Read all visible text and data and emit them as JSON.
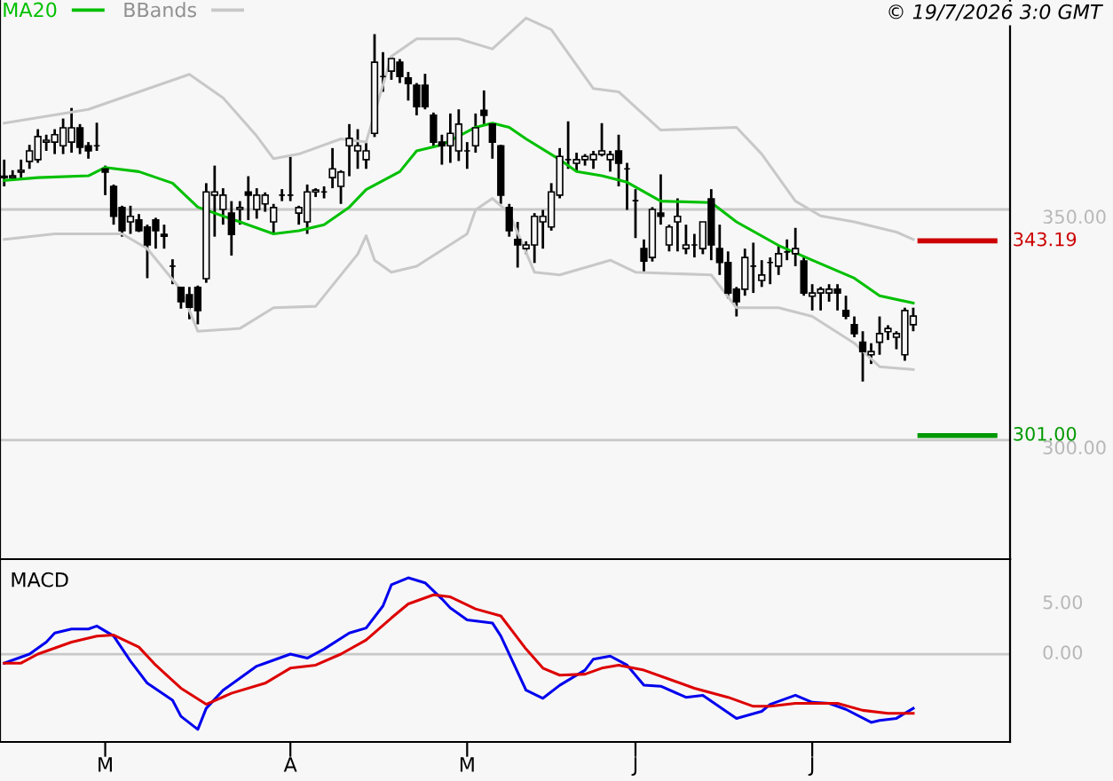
{
  "chart_data": [
    {
      "type": "candlestick",
      "annotations": [
        "© 19/7/2026 3:0 GMT"
      ],
      "color": "#000000",
      "ohlc": [
        [
          357.2,
          360.8,
          355.0,
          356.9
        ],
        [
          356.9,
          358.5,
          356.3,
          357.3
        ],
        [
          358.1,
          360.8,
          356.9,
          358.5
        ],
        [
          360.4,
          364.0,
          358.8,
          362.7
        ],
        [
          360.8,
          367.4,
          360.1,
          365.8
        ],
        [
          364.6,
          366.2,
          362.7,
          365.0
        ],
        [
          364.6,
          367.4,
          362.0,
          366.2
        ],
        [
          363.8,
          369.7,
          362.0,
          367.7
        ],
        [
          364.6,
          372.0,
          362.3,
          367.7
        ],
        [
          367.7,
          368.5,
          362.0,
          363.5
        ],
        [
          363.8,
          364.6,
          361.0,
          362.7
        ],
        [
          363.8,
          368.8,
          362.7,
          363.8
        ],
        [
          358.8,
          359.5,
          353.1,
          358.1
        ],
        [
          355.0,
          355.4,
          346.7,
          348.5
        ],
        [
          350.4,
          350.8,
          344.1,
          345.4
        ],
        [
          347.3,
          350.8,
          344.7,
          348.5
        ],
        [
          347.7,
          349.0,
          345.1,
          345.4
        ],
        [
          346.2,
          346.7,
          335.1,
          342.3
        ],
        [
          347.7,
          348.2,
          341.5,
          345.4
        ],
        [
          344.6,
          346.7,
          341.5,
          344.2
        ],
        [
          337.7,
          339.2,
          333.8,
          337.7
        ],
        [
          333.1,
          333.2,
          328.5,
          330.0
        ],
        [
          331.5,
          333.2,
          326.2,
          328.8
        ],
        [
          333.1,
          333.5,
          325.1,
          328.1
        ],
        [
          335.0,
          355.7,
          334.1,
          353.8
        ],
        [
          353.1,
          359.5,
          344.1,
          353.8
        ],
        [
          350.0,
          354.6,
          346.7,
          353.1
        ],
        [
          349.2,
          351.8,
          340.0,
          344.6
        ],
        [
          350.0,
          351.8,
          346.7,
          350.4
        ],
        [
          353.8,
          357.2,
          347.7,
          353.1
        ],
        [
          350.0,
          354.6,
          348.0,
          353.1
        ],
        [
          351.2,
          353.7,
          349.5,
          353.1
        ],
        [
          347.3,
          351.2,
          344.7,
          350.4
        ],
        [
          353.1,
          354.4,
          351.8,
          353.1
        ],
        [
          353.1,
          361.4,
          351.8,
          353.1
        ],
        [
          349.2,
          350.8,
          346.7,
          350.4
        ],
        [
          347.3,
          355.4,
          344.7,
          353.8
        ],
        [
          353.8,
          354.6,
          352.7,
          354.2
        ],
        [
          353.8,
          355.0,
          352.4,
          353.8
        ],
        [
          356.9,
          363.3,
          354.6,
          358.8
        ],
        [
          355.0,
          358.5,
          351.2,
          358.1
        ],
        [
          363.8,
          368.5,
          357.2,
          365.4
        ],
        [
          362.7,
          367.4,
          358.8,
          363.8
        ],
        [
          360.8,
          364.6,
          358.8,
          362.7
        ],
        [
          366.5,
          388.0,
          365.7,
          381.9
        ],
        [
          378.8,
          384.1,
          375.5,
          378.8
        ],
        [
          380.0,
          383.2,
          378.1,
          382.7
        ],
        [
          381.9,
          382.6,
          377.4,
          378.8
        ],
        [
          378.5,
          379.8,
          373.6,
          377.3
        ],
        [
          376.9,
          377.4,
          370.4,
          372.3
        ],
        [
          376.9,
          379.4,
          371.7,
          372.3
        ],
        [
          370.4,
          371.0,
          363.6,
          364.6
        ],
        [
          364.6,
          366.2,
          359.7,
          363.8
        ],
        [
          363.8,
          370.8,
          360.1,
          366.5
        ],
        [
          362.7,
          371.7,
          360.5,
          368.5
        ],
        [
          362.7,
          364.6,
          358.8,
          362.7
        ],
        [
          363.8,
          370.8,
          362.3,
          367.7
        ],
        [
          371.5,
          375.8,
          368.5,
          370.4
        ],
        [
          368.5,
          368.7,
          361.0,
          364.6
        ],
        [
          363.8,
          364.0,
          351.2,
          353.1
        ],
        [
          350.4,
          351.2,
          344.1,
          345.4
        ],
        [
          343.5,
          347.3,
          337.4,
          342.3
        ],
        [
          341.5,
          343.1,
          340.3,
          342.3
        ],
        [
          342.3,
          349.2,
          338.4,
          348.5
        ],
        [
          347.3,
          349.9,
          341.5,
          348.5
        ],
        [
          346.2,
          355.7,
          345.4,
          353.8
        ],
        [
          353.1,
          363.3,
          352.4,
          361.5
        ],
        [
          360.8,
          369.1,
          358.8,
          360.8
        ],
        [
          360.0,
          362.3,
          358.2,
          360.8
        ],
        [
          360.8,
          362.0,
          359.5,
          361.5
        ],
        [
          360.8,
          362.7,
          358.8,
          361.9
        ],
        [
          361.9,
          368.7,
          361.5,
          362.7
        ],
        [
          360.8,
          362.7,
          358.2,
          361.9
        ],
        [
          362.7,
          366.2,
          355.0,
          360.0
        ],
        [
          358.8,
          360.1,
          349.9,
          358.8
        ],
        [
          351.9,
          354.4,
          343.8,
          351.9
        ],
        [
          341.5,
          343.5,
          336.4,
          338.8
        ],
        [
          339.6,
          350.5,
          338.7,
          350.0
        ],
        [
          349.2,
          357.6,
          346.7,
          348.5
        ],
        [
          342.3,
          346.7,
          340.9,
          346.2
        ],
        [
          347.3,
          352.4,
          340.9,
          348.5
        ],
        [
          341.5,
          346.7,
          340.3,
          342.3
        ],
        [
          342.3,
          344.7,
          339.6,
          342.3
        ],
        [
          341.5,
          347.3,
          340.3,
          347.3
        ],
        [
          352.3,
          354.4,
          339.0,
          342.3
        ],
        [
          341.5,
          346.7,
          335.8,
          338.5
        ],
        [
          338.5,
          340.9,
          330.7,
          331.9
        ],
        [
          332.7,
          333.2,
          326.8,
          330.0
        ],
        [
          332.7,
          341.5,
          331.3,
          339.6
        ],
        [
          337.7,
          342.8,
          331.9,
          337.7
        ],
        [
          334.6,
          339.0,
          333.2,
          335.8
        ],
        [
          338.5,
          339.6,
          333.8,
          338.5
        ],
        [
          337.7,
          342.2,
          335.8,
          340.4
        ],
        [
          340.8,
          343.5,
          339.0,
          340.8
        ],
        [
          340.4,
          346.0,
          337.7,
          341.5
        ],
        [
          338.8,
          339.6,
          331.3,
          331.9
        ],
        [
          331.2,
          333.8,
          328.1,
          331.9
        ],
        [
          331.9,
          333.2,
          328.1,
          332.7
        ],
        [
          331.9,
          333.8,
          330.0,
          332.7
        ],
        [
          332.7,
          333.8,
          328.1,
          331.9
        ],
        [
          328.1,
          331.3,
          326.2,
          326.9
        ],
        [
          325.0,
          326.8,
          322.3,
          323.1
        ],
        [
          321.2,
          323.6,
          312.7,
          319.2
        ],
        [
          318.5,
          321.0,
          316.5,
          319.2
        ],
        [
          321.2,
          326.8,
          318.5,
          323.1
        ],
        [
          323.5,
          324.9,
          321.7,
          324.2
        ],
        [
          322.3,
          323.6,
          319.7,
          323.1
        ],
        [
          318.5,
          328.7,
          317.2,
          328.1
        ],
        [
          325.0,
          328.7,
          323.6,
          326.9
        ],
        null,
        null,
        null,
        null,
        null,
        null,
        null,
        null,
        null,
        null,
        null
      ],
      "series": [
        {
          "name": "MA20",
          "type": "line",
          "color": "#00c000",
          "values": [
            356.3,
            null,
            null,
            null,
            356.9,
            null,
            null,
            null,
            null,
            null,
            357.3,
            null,
            359.1,
            null,
            null,
            null,
            358.2,
            null,
            null,
            null,
            355.7,
            null,
            null,
            350.5,
            null,
            null,
            null,
            null,
            347.3,
            null,
            null,
            null,
            344.7,
            null,
            null,
            345.4,
            null,
            null,
            346.7,
            null,
            null,
            350.5,
            null,
            354.3,
            null,
            null,
            null,
            358.2,
            null,
            362.7,
            null,
            null,
            364.0,
            null,
            365.9,
            null,
            367.8,
            null,
            368.7,
            null,
            367.8,
            null,
            365.3,
            null,
            null,
            null,
            360.8,
            null,
            358.2,
            null,
            null,
            357.3,
            null,
            null,
            355.9,
            null,
            null,
            null,
            351.8,
            null,
            null,
            null,
            null,
            null,
            351.5,
            null,
            null,
            347.3,
            null,
            null,
            null,
            null,
            342.2,
            null,
            null,
            null,
            339.0,
            null,
            null,
            null,
            null,
            335.1,
            null,
            null,
            331.3,
            null,
            null,
            null,
            329.7,
            null,
            null,
            null,
            null,
            null,
            null,
            null,
            null,
            null,
            null,
            null
          ]
        },
        {
          "name": "BBands",
          "type": "line",
          "color": "#c8c8c8",
          "values": [
            368.7,
            null,
            null,
            null,
            null,
            null,
            null,
            null,
            null,
            null,
            371.7,
            null,
            null,
            null,
            null,
            null,
            375.5,
            null,
            null,
            null,
            null,
            null,
            379.3,
            null,
            null,
            null,
            374.2,
            null,
            null,
            null,
            365.9,
            null,
            361.0,
            null,
            null,
            362.0,
            null,
            null,
            null,
            null,
            365.3,
            null,
            null,
            364.6,
            null,
            null,
            383.2,
            null,
            null,
            387.0,
            null,
            null,
            null,
            null,
            387.0,
            null,
            null,
            null,
            384.8,
            null,
            null,
            null,
            391.5,
            null,
            null,
            389.0,
            null,
            null,
            null,
            null,
            376.2,
            null,
            null,
            375.5,
            null,
            null,
            null,
            null,
            367.2,
            null,
            null,
            null,
            null,
            null,
            null,
            null,
            null,
            367.8,
            null,
            null,
            362.0,
            null,
            null,
            null,
            351.8,
            null,
            null,
            348.6,
            null,
            null,
            null,
            347.3,
            null,
            null,
            null,
            null,
            345.1,
            null,
            343.5,
            null,
            null,
            null,
            null,
            null,
            null,
            null,
            null,
            null,
            null,
            null
          ]
        },
        {
          "type": "line",
          "color": "#c8c8c8",
          "values": [
            343.5,
            null,
            null,
            null,
            null,
            null,
            344.7,
            null,
            null,
            null,
            null,
            null,
            null,
            null,
            344.7,
            null,
            null,
            341.5,
            null,
            null,
            null,
            332.6,
            null,
            323.6,
            null,
            null,
            null,
            null,
            324.2,
            null,
            null,
            null,
            328.7,
            null,
            null,
            null,
            null,
            329.0,
            null,
            null,
            null,
            null,
            340.3,
            344.3,
            339.0,
            null,
            336.4,
            null,
            null,
            337.7,
            null,
            null,
            null,
            null,
            null,
            344.7,
            349.9,
            null,
            352.4,
            null,
            349.2,
            null,
            null,
            336.4,
            null,
            null,
            335.8,
            null,
            null,
            null,
            null,
            null,
            339.0,
            null,
            null,
            336.4,
            null,
            null,
            null,
            null,
            null,
            null,
            null,
            null,
            335.8,
            null,
            null,
            328.7,
            null,
            null,
            null,
            null,
            328.7,
            null,
            null,
            null,
            326.8,
            null,
            null,
            null,
            null,
            321.0,
            null,
            null,
            315.9,
            null,
            null,
            null,
            315.3,
            null,
            null,
            null,
            null,
            null,
            null,
            null,
            null,
            null,
            null,
            null
          ]
        }
      ],
      "categories": [
        null,
        null,
        null,
        null,
        null,
        null,
        null,
        null,
        null,
        null,
        null,
        null,
        null,
        null,
        null,
        null,
        null,
        null,
        null,
        null,
        null,
        null,
        null,
        null,
        null,
        null,
        null,
        null,
        null,
        null,
        null,
        null,
        null,
        null,
        null,
        null,
        null,
        null,
        null,
        null,
        null,
        null,
        null,
        null,
        null,
        null,
        null,
        null,
        null,
        null,
        null,
        null,
        null,
        null,
        null,
        null,
        null,
        null,
        null,
        null,
        null,
        null,
        null,
        null,
        null,
        null,
        null,
        null,
        null,
        null,
        null,
        null,
        null,
        null,
        null,
        null,
        null,
        null,
        null,
        null,
        null,
        null,
        null,
        null,
        null,
        null,
        null,
        null,
        null,
        null,
        null,
        null,
        null,
        null,
        null,
        null,
        null,
        null,
        null,
        null,
        null,
        null,
        null,
        null,
        null,
        null,
        null,
        null,
        null,
        null,
        null,
        null,
        null,
        null,
        null,
        null,
        null,
        null,
        null,
        null
      ],
      "ylim": [
        274.2,
        395.4
      ],
      "yticks": [
        {
          "value": 350,
          "label": "350.00"
        },
        {
          "value": 300,
          "label": "300.00"
        }
      ],
      "grid": "y",
      "legend": "top left",
      "tick_labels": "y",
      "ref_lines": [
        {
          "axis": "y",
          "value": 343.19,
          "label": "343.19",
          "color": "#cc0000"
        },
        {
          "axis": "y",
          "value": 301.0,
          "label": "301.00",
          "color": "#009900"
        }
      ]
    },
    {
      "type": "line",
      "title": "MACD",
      "series": [
        {
          "color": "#0000ee",
          "values": [
            -0.9,
            null,
            null,
            0.0,
            null,
            1.2,
            2.1,
            null,
            2.5,
            null,
            2.5,
            2.8,
            null,
            1.8,
            null,
            -0.7,
            null,
            -2.9,
            null,
            null,
            -4.6,
            -6.2,
            null,
            -7.5,
            -5.4,
            null,
            -3.6,
            null,
            null,
            null,
            -1.2,
            -0.9,
            null,
            null,
            0.0,
            null,
            -0.4,
            null,
            0.5,
            null,
            null,
            2.1,
            null,
            2.6,
            null,
            4.8,
            6.9,
            null,
            7.6,
            null,
            7.1,
            null,
            5.5,
            4.6,
            null,
            3.4,
            null,
            null,
            3.1,
            1.8,
            null,
            null,
            -3.6,
            null,
            -4.4,
            null,
            -3.1,
            null,
            null,
            -1.6,
            -0.5,
            null,
            -0.2,
            null,
            -1.1,
            null,
            -3.1,
            null,
            -3.2,
            null,
            null,
            -4.3,
            null,
            -4.1,
            null,
            null,
            null,
            -6.4,
            null,
            null,
            -5.7,
            -5.0,
            null,
            null,
            -4.1,
            null,
            -4.8,
            null,
            -4.9,
            null,
            -5.5,
            null,
            null,
            -6.8,
            -6.6,
            null,
            -6.4,
            null,
            -5.4,
            null,
            null,
            null,
            null,
            null,
            null,
            null,
            null,
            null,
            null,
            null
          ]
        },
        {
          "color": "#dd0000",
          "values": [
            -0.9,
            null,
            -0.9,
            null,
            0.0,
            null,
            null,
            null,
            1.2,
            null,
            null,
            1.8,
            null,
            1.9,
            null,
            null,
            0.7,
            null,
            -1.1,
            null,
            null,
            -3.4,
            null,
            null,
            -5.0,
            null,
            null,
            -3.9,
            null,
            null,
            null,
            -2.9,
            null,
            null,
            -1.4,
            null,
            null,
            -1.1,
            null,
            null,
            0.0,
            null,
            null,
            1.4,
            null,
            null,
            3.6,
            null,
            5.0,
            null,
            null,
            5.9,
            null,
            5.7,
            null,
            null,
            4.5,
            null,
            null,
            3.8,
            null,
            null,
            0.5,
            null,
            -1.4,
            null,
            -2.1,
            null,
            null,
            -2.0,
            null,
            -1.4,
            null,
            -1.1,
            null,
            null,
            -1.6,
            null,
            null,
            -2.5,
            null,
            null,
            -3.4,
            null,
            null,
            null,
            -4.3,
            null,
            null,
            -5.2,
            null,
            -5.2,
            null,
            null,
            -4.9,
            null,
            null,
            null,
            null,
            -4.9,
            null,
            null,
            -5.6,
            null,
            null,
            -5.9,
            null,
            null,
            -5.9,
            null,
            null,
            null,
            null,
            null,
            null,
            null,
            null,
            null,
            null,
            null
          ]
        }
      ],
      "categories": [
        null,
        null,
        null,
        null,
        null,
        null,
        null,
        null,
        null,
        null,
        null,
        null,
        "M",
        null,
        null,
        null,
        null,
        null,
        null,
        null,
        null,
        null,
        null,
        null,
        null,
        null,
        null,
        null,
        null,
        null,
        null,
        null,
        null,
        null,
        "A",
        null,
        null,
        null,
        null,
        null,
        null,
        null,
        null,
        null,
        null,
        null,
        null,
        null,
        null,
        null,
        null,
        null,
        null,
        null,
        null,
        "M",
        null,
        null,
        null,
        null,
        null,
        null,
        null,
        null,
        null,
        null,
        null,
        null,
        null,
        null,
        null,
        null,
        null,
        null,
        null,
        "J",
        null,
        null,
        null,
        null,
        null,
        null,
        null,
        null,
        null,
        null,
        null,
        null,
        null,
        null,
        null,
        null,
        null,
        null,
        null,
        null,
        "J",
        null,
        null,
        null,
        null,
        null,
        null,
        null,
        null,
        null,
        null,
        null,
        null,
        null,
        null,
        null,
        null,
        null,
        null,
        null,
        null,
        null,
        null,
        null
      ],
      "ylim": [
        -8.75,
        9.46
      ],
      "yticks": [
        {
          "value": 5,
          "label": "5.00"
        },
        {
          "value": 0,
          "label": "0.00"
        }
      ],
      "ref_lines": [
        {
          "axis": "y",
          "value": 0,
          "color": "#c8c8c8"
        }
      ]
    }
  ]
}
